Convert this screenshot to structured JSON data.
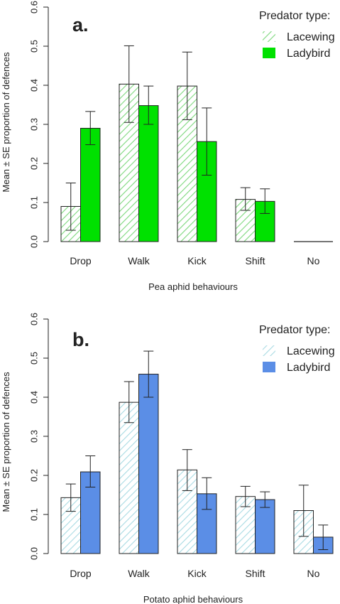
{
  "chart_data": [
    {
      "type": "bar",
      "panel_label": "a.",
      "categories": [
        "Drop",
        "Walk",
        "Kick",
        "Shift",
        "No"
      ],
      "xlabel": "Pea aphid behaviours",
      "ylabel": "Mean ± SE proportion of defences",
      "ylim": [
        0,
        0.6
      ],
      "yticks": [
        "0.0",
        "0.1",
        "0.2",
        "0.3",
        "0.4",
        "0.5",
        "0.6"
      ],
      "grid": false,
      "legend": {
        "title": "Predator type:",
        "placement": "top-right"
      },
      "series": [
        {
          "name": "Lacewing",
          "fill": "hatched",
          "color": "#7dd87d",
          "values": [
            0.09,
            0.403,
            0.398,
            0.108,
            0.0
          ],
          "se_low": [
            0.029,
            0.305,
            0.312,
            0.08,
            0.0
          ],
          "se_high": [
            0.15,
            0.501,
            0.485,
            0.138,
            0.0
          ]
        },
        {
          "name": "Ladybird",
          "fill": "solid",
          "color": "#00e100",
          "values": [
            0.29,
            0.348,
            0.256,
            0.103,
            0.0
          ],
          "se_low": [
            0.248,
            0.3,
            0.17,
            0.072,
            0.0
          ],
          "se_high": [
            0.333,
            0.398,
            0.342,
            0.135,
            0.0
          ]
        }
      ]
    },
    {
      "type": "bar",
      "panel_label": "b.",
      "categories": [
        "Drop",
        "Walk",
        "Kick",
        "Shift",
        "No"
      ],
      "xlabel": "Potato aphid behaviours",
      "ylabel": "Mean ± SE proportion of defences",
      "ylim": [
        0,
        0.6
      ],
      "yticks": [
        "0.0",
        "0.1",
        "0.2",
        "0.3",
        "0.4",
        "0.5",
        "0.6"
      ],
      "grid": false,
      "legend": {
        "title": "Predator type:",
        "placement": "top-right"
      },
      "series": [
        {
          "name": "Lacewing",
          "fill": "hatched",
          "color": "#a9dbe3",
          "values": [
            0.143,
            0.387,
            0.214,
            0.146,
            0.11
          ],
          "se_low": [
            0.108,
            0.335,
            0.161,
            0.12,
            0.044
          ],
          "se_high": [
            0.178,
            0.44,
            0.266,
            0.172,
            0.175
          ]
        },
        {
          "name": "Ladybird",
          "fill": "solid",
          "color": "#5b8ee6",
          "values": [
            0.209,
            0.459,
            0.153,
            0.138,
            0.042
          ],
          "se_low": [
            0.17,
            0.4,
            0.113,
            0.118,
            0.01
          ],
          "se_high": [
            0.25,
            0.518,
            0.194,
            0.158,
            0.073
          ]
        }
      ]
    }
  ]
}
